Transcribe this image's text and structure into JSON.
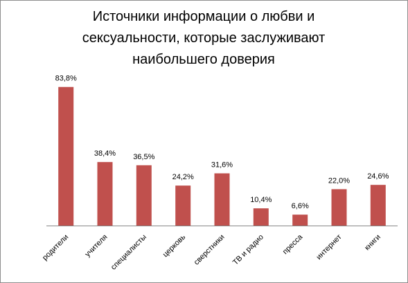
{
  "chart_data": {
    "type": "bar",
    "title_lines": [
      "Источники информации о любви и",
      "сексуальности, которые заслуживают",
      "наибольшего доверия"
    ],
    "categories": [
      "родители",
      "учителя",
      "специалисты",
      "церковь",
      "сверстники",
      "ТВ и радио",
      "пресса",
      "интернет",
      "книги"
    ],
    "values": [
      83.8,
      38.4,
      36.5,
      24.2,
      31.6,
      10.4,
      6.6,
      22.0,
      24.6
    ],
    "data_labels": [
      "83,8%",
      "38,4%",
      "36,5%",
      "24,2%",
      "31,6%",
      "10,4%",
      "6,6%",
      "22,0%",
      "24,6%"
    ],
    "ylim": [
      0,
      100
    ],
    "grid": false,
    "legend": "none",
    "bar_color": "#c0504d",
    "axis_color": "#868686"
  }
}
